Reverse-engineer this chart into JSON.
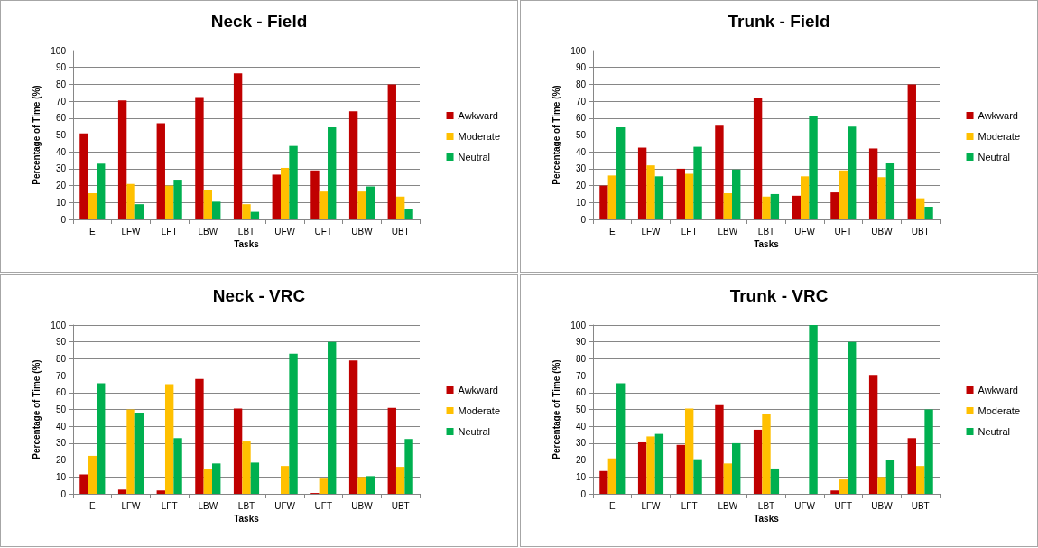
{
  "chart_data": [
    {
      "type": "bar",
      "title": "Neck - Field",
      "xlabel": "Tasks",
      "ylabel": "Percentage of Time (%)",
      "categories": [
        "E",
        "LFW",
        "LFT",
        "LBW",
        "LBT",
        "UFW",
        "UFT",
        "UBW",
        "UBT"
      ],
      "series": [
        {
          "name": "Awkward",
          "color": "#c00000",
          "values": [
            51,
            70.5,
            57,
            72.5,
            86.5,
            26.5,
            29,
            64,
            80
          ]
        },
        {
          "name": "Moderate",
          "color": "#ffc000",
          "values": [
            15.5,
            21,
            20,
            17.5,
            9,
            30.5,
            16.5,
            16.5,
            13.5
          ]
        },
        {
          "name": "Neutral",
          "color": "#00b050",
          "values": [
            33,
            9,
            23.5,
            10.5,
            4.5,
            43.5,
            54.5,
            19.5,
            6
          ]
        }
      ],
      "ylim": [
        0,
        100
      ],
      "yticks": [
        0,
        10,
        20,
        30,
        40,
        50,
        60,
        70,
        80,
        90,
        100
      ],
      "grid": "y",
      "legend": "right"
    },
    {
      "type": "bar",
      "title": "Trunk - Field",
      "xlabel": "Tasks",
      "ylabel": "Percentage of Time (%)",
      "categories": [
        "E",
        "LFW",
        "LFT",
        "LBW",
        "LBT",
        "UFW",
        "UFT",
        "UBW",
        "UBT"
      ],
      "series": [
        {
          "name": "Awkward",
          "color": "#c00000",
          "values": [
            20,
            42.5,
            30,
            55.5,
            72,
            14,
            16,
            42,
            80
          ]
        },
        {
          "name": "Moderate",
          "color": "#ffc000",
          "values": [
            26,
            32,
            27,
            15.5,
            13.5,
            25.5,
            29,
            25,
            12.5
          ]
        },
        {
          "name": "Neutral",
          "color": "#00b050",
          "values": [
            54.5,
            25.5,
            43,
            29.5,
            15,
            61,
            55,
            33.5,
            7.5
          ]
        }
      ],
      "ylim": [
        0,
        100
      ],
      "yticks": [
        0,
        10,
        20,
        30,
        40,
        50,
        60,
        70,
        80,
        90,
        100
      ],
      "grid": "y",
      "legend": "right"
    },
    {
      "type": "bar",
      "title": "Neck - VRC",
      "xlabel": "Tasks",
      "ylabel": "Percentage of Time (%)",
      "categories": [
        "E",
        "LFW",
        "LFT",
        "LBW",
        "LBT",
        "UFW",
        "UFT",
        "UBW",
        "UBT"
      ],
      "series": [
        {
          "name": "Awkward",
          "color": "#c00000",
          "values": [
            11.5,
            2.5,
            2,
            68,
            50.5,
            0,
            0.5,
            79,
            51
          ]
        },
        {
          "name": "Moderate",
          "color": "#ffc000",
          "values": [
            22.5,
            50,
            65,
            14.5,
            31,
            16.5,
            9,
            10,
            16
          ]
        },
        {
          "name": "Neutral",
          "color": "#00b050",
          "values": [
            65.5,
            48,
            33,
            18,
            18.5,
            83,
            90,
            10.5,
            32.5
          ]
        }
      ],
      "ylim": [
        0,
        100
      ],
      "yticks": [
        0,
        10,
        20,
        30,
        40,
        50,
        60,
        70,
        80,
        90,
        100
      ],
      "grid": "y",
      "legend": "right"
    },
    {
      "type": "bar",
      "title": "Trunk - VRC",
      "xlabel": "Tasks",
      "ylabel": "Percentage of Time (%)",
      "categories": [
        "E",
        "LFW",
        "LFT",
        "LBW",
        "LBT",
        "UFW",
        "UFT",
        "UBW",
        "UBT"
      ],
      "series": [
        {
          "name": "Awkward",
          "color": "#c00000",
          "values": [
            13.5,
            30.5,
            29,
            52.5,
            38,
            0,
            2,
            70.5,
            33
          ]
        },
        {
          "name": "Moderate",
          "color": "#ffc000",
          "values": [
            21,
            34,
            50.5,
            18,
            47,
            0,
            8.5,
            10,
            16.5
          ]
        },
        {
          "name": "Neutral",
          "color": "#00b050",
          "values": [
            65.5,
            35.5,
            20.5,
            30,
            15,
            100,
            90,
            20,
            50
          ]
        }
      ],
      "ylim": [
        0,
        100
      ],
      "yticks": [
        0,
        10,
        20,
        30,
        40,
        50,
        60,
        70,
        80,
        90,
        100
      ],
      "grid": "y",
      "legend": "right"
    }
  ]
}
